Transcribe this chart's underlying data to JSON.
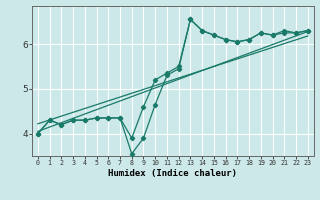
{
  "xlabel": "Humidex (Indice chaleur)",
  "background_color": "#cce8e8",
  "grid_color": "#ffffff",
  "line_color": "#1a7a6a",
  "x": [
    0,
    1,
    2,
    3,
    4,
    5,
    6,
    7,
    8,
    9,
    10,
    11,
    12,
    13,
    14,
    15,
    16,
    17,
    18,
    19,
    20,
    21,
    22,
    23
  ],
  "line1": [
    4.0,
    4.3,
    4.2,
    4.3,
    4.3,
    4.35,
    4.35,
    4.35,
    3.9,
    4.6,
    5.2,
    5.35,
    5.5,
    6.55,
    6.3,
    6.2,
    6.1,
    6.05,
    6.1,
    6.25,
    6.2,
    6.3,
    6.25,
    6.3
  ],
  "line2": [
    4.0,
    4.3,
    4.2,
    4.3,
    4.3,
    4.35,
    4.35,
    4.35,
    3.55,
    3.9,
    4.65,
    5.3,
    5.45,
    6.55,
    6.3,
    6.2,
    6.1,
    6.05,
    6.1,
    6.25,
    6.2,
    6.25,
    6.25,
    6.3
  ],
  "trend1_x": [
    0,
    23
  ],
  "trend1_y": [
    4.05,
    6.28
  ],
  "trend2_x": [
    0,
    23
  ],
  "trend2_y": [
    4.22,
    6.18
  ],
  "ylim": [
    3.5,
    6.85
  ],
  "yticks": [
    4,
    5,
    6
  ],
  "xticks": [
    0,
    1,
    2,
    3,
    4,
    5,
    6,
    7,
    8,
    9,
    10,
    11,
    12,
    13,
    14,
    15,
    16,
    17,
    18,
    19,
    20,
    21,
    22,
    23
  ]
}
